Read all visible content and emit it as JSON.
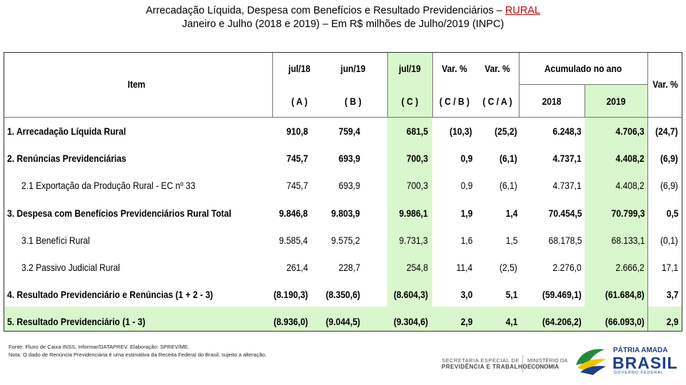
{
  "title": {
    "line1_prefix": "Arrecadação Líquida, Despesa com Benefícios e Resultado Previdenciários – ",
    "line1_highlight": "RURAL",
    "line2": "Janeiro e Julho (2018 e 2019) – Em R$ milhões de Julho/2019 (INPC)"
  },
  "header": {
    "item": "Item",
    "jul18": "jul/18",
    "jun19": "jun/19",
    "jul19": "jul/19",
    "var1": "Var. %",
    "var2": "Var. %",
    "acumulado": "Acumulado no ano",
    "var3": "Var. %",
    "a": "( A )",
    "b": "( B )",
    "c": "( C )",
    "cb": "( C / B )",
    "ca": "( C / A )",
    "y2018": "2018",
    "y2019": "2019"
  },
  "rows": [
    {
      "label": "1. Arrecadação Líquida Rural",
      "bold": true,
      "values": [
        "910,8",
        "759,4",
        "681,5",
        "(10,3)",
        "(25,2)",
        "6.248,3",
        "4.706,3",
        "(24,7)"
      ]
    },
    {
      "label": "2. Renúncias Previdenciárias",
      "bold": true,
      "values": [
        "745,7",
        "693,9",
        "700,3",
        "0,9",
        "(6,1)",
        "4.737,1",
        "4.408,2",
        "(6,9)"
      ]
    },
    {
      "label": "2.1 Exportação da Produção Rural - EC nº 33",
      "bold": false,
      "values": [
        "745,7",
        "693,9",
        "700,3",
        "0,9",
        "(6,1)",
        "4.737,1",
        "4.408,2",
        "(6,9)"
      ]
    },
    {
      "label": "3. Despesa com Benefícios Previdenciários Rural Total",
      "bold": true,
      "values": [
        "9.846,8",
        "9.803,9",
        "9.986,1",
        "1,9",
        "1,4",
        "70.454,5",
        "70.799,3",
        "0,5"
      ]
    },
    {
      "label": "3.1 Benefíci Rural",
      "bold": false,
      "values": [
        "9.585,4",
        "9.575,2",
        "9.731,3",
        "1,6",
        "1,5",
        "68.178,5",
        "68.133,1",
        "(0,1)"
      ]
    },
    {
      "label": "3.2 Passivo Judicial Rural",
      "bold": false,
      "values": [
        "261,4",
        "228,7",
        "254,8",
        "11,4",
        "(2,5)",
        "2.276,0",
        "2.666,2",
        "17,1"
      ]
    },
    {
      "label": "4. Resultado Previdenciário e Renúncias (1 + 2 - 3)",
      "bold": true,
      "values": [
        "(8.190,3)",
        "(8.350,6)",
        "(8.604,3)",
        "3,0",
        "5,1",
        "(59.469,1)",
        "(61.684,8)",
        "3,7"
      ]
    },
    {
      "label": "5. Resultado Previdenciário (1 - 3)",
      "bold": true,
      "values": [
        "(8.936,0)",
        "(9.044,5)",
        "(9.304,6)",
        "2,9",
        "4,1",
        "(64.206,2)",
        "(66.093,0)",
        "2,9"
      ]
    }
  ],
  "footer": {
    "fonte": "Fonte: Fluxo de Caixa INSS; Informar/DATAPREV. Elaboração: SPREV/ME.",
    "nota": "Nota: O dado de Renúncia Previdenciária é uma estimativa da Receita Federal do Brasil, sujeito a alteração."
  },
  "logos": {
    "sec_line1": "SECRETARIA ESPECIAL DE",
    "sec_line2": "PREVIDÊNCIA E TRABALHO",
    "min_line1": "MINISTÉRIO DA",
    "min_line2": "ECONOMIA",
    "brasil_line1": "PÁTRIA AMADA",
    "brasil_line2": "BRASIL",
    "brasil_line3": "GOVERNO FEDERAL"
  },
  "colors": {
    "highlight_band": "#d9f7cc",
    "title_accent": "#c00000",
    "brasil_green": "#1f8a3b",
    "brasil_blue": "#1b3f8b",
    "brasil_yellow": "#f2c200"
  }
}
